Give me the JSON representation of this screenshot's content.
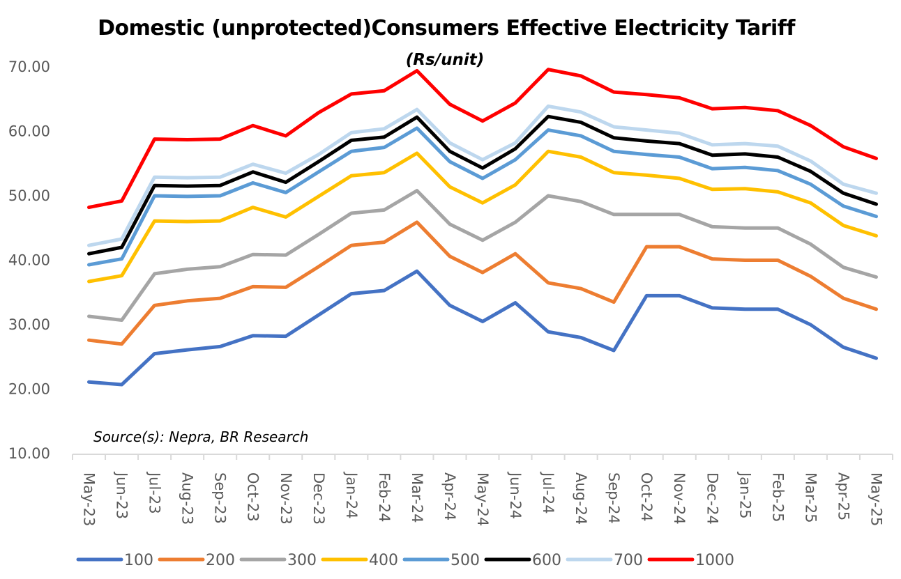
{
  "chart_data": {
    "type": "line",
    "title": "Domestic (unprotected)Consumers Effective Electricity Tariff",
    "subtitle": "(Rs/unit)",
    "xlabel": "",
    "ylabel": "",
    "ylim": [
      10,
      70
    ],
    "yticks": [
      "10.00",
      "20.00",
      "30.00",
      "40.00",
      "50.00",
      "60.00",
      "70.00"
    ],
    "grid": false,
    "legend_position": "bottom",
    "source": "Source(s): Nepra, BR Research",
    "categories": [
      "May-23",
      "Jun-23",
      "Jul-23",
      "Aug-23",
      "Sep-23",
      "Oct-23",
      "Nov-23",
      "Dec-23",
      "Jan-24",
      "Feb-24",
      "Mar-24",
      "Apr-24",
      "May-24",
      "Jun-24",
      "Jul-24",
      "Aug-24",
      "Sep-24",
      "Oct-24",
      "Nov-24",
      "Dec-24",
      "Jan-25",
      "Feb-25",
      "Mar-25",
      "Apr-25",
      "May-25"
    ],
    "series": [
      {
        "name": "100",
        "color": "#4472c4",
        "values": [
          21.1,
          20.7,
          25.5,
          26.1,
          26.6,
          28.3,
          28.2,
          31.5,
          34.8,
          35.3,
          38.3,
          33.0,
          30.5,
          33.4,
          28.9,
          28.0,
          26.0,
          34.5,
          34.5,
          32.6,
          32.4,
          32.4,
          30.0,
          26.5,
          24.8
        ]
      },
      {
        "name": "200",
        "color": "#ed7d31",
        "values": [
          27.6,
          27.0,
          33.0,
          33.7,
          34.1,
          35.9,
          35.8,
          39.0,
          42.3,
          42.8,
          45.9,
          40.6,
          38.1,
          41.0,
          36.5,
          35.6,
          33.5,
          42.1,
          42.1,
          40.2,
          40.0,
          40.0,
          37.5,
          34.1,
          32.4
        ]
      },
      {
        "name": "300",
        "color": "#a5a5a5",
        "values": [
          31.3,
          30.7,
          37.9,
          38.6,
          39.0,
          40.9,
          40.8,
          44.0,
          47.3,
          47.8,
          50.8,
          45.6,
          43.1,
          45.9,
          50.0,
          49.1,
          47.1,
          47.1,
          47.1,
          45.2,
          45.0,
          45.0,
          42.5,
          38.9,
          37.4
        ]
      },
      {
        "name": "400",
        "color": "#ffc000",
        "values": [
          36.7,
          37.6,
          46.1,
          46.0,
          46.1,
          48.2,
          46.7,
          49.9,
          53.1,
          53.6,
          56.6,
          51.4,
          48.9,
          51.7,
          56.9,
          56.0,
          53.6,
          53.2,
          52.7,
          51.0,
          51.1,
          50.6,
          48.9,
          45.4,
          43.8
        ]
      },
      {
        "name": "500",
        "color": "#5b9bd5",
        "values": [
          39.3,
          40.2,
          50.0,
          49.9,
          50.0,
          52.0,
          50.5,
          53.7,
          56.9,
          57.5,
          60.5,
          55.3,
          52.7,
          55.6,
          60.2,
          59.3,
          56.9,
          56.4,
          56.0,
          54.2,
          54.4,
          53.9,
          51.8,
          48.4,
          46.8
        ]
      },
      {
        "name": "600",
        "color": "#000000",
        "values": [
          41.0,
          42.0,
          51.6,
          51.5,
          51.6,
          53.7,
          52.1,
          55.3,
          58.6,
          59.1,
          62.2,
          56.9,
          54.3,
          57.3,
          62.3,
          61.4,
          59.0,
          58.5,
          58.1,
          56.3,
          56.5,
          56.0,
          53.8,
          50.4,
          48.7
        ]
      },
      {
        "name": "700",
        "color": "#bdd7ee",
        "values": [
          42.3,
          43.3,
          52.9,
          52.8,
          52.9,
          54.9,
          53.5,
          56.4,
          59.8,
          60.4,
          63.4,
          58.2,
          55.6,
          58.2,
          63.9,
          63.0,
          60.7,
          60.2,
          59.7,
          57.9,
          58.1,
          57.7,
          55.4,
          51.8,
          50.4
        ]
      },
      {
        "name": "1000",
        "color": "#ff0000",
        "values": [
          48.2,
          49.2,
          58.8,
          58.7,
          58.8,
          60.9,
          59.3,
          62.9,
          65.8,
          66.3,
          69.4,
          64.2,
          61.6,
          64.4,
          69.6,
          68.6,
          66.1,
          65.7,
          65.2,
          63.5,
          63.7,
          63.2,
          60.9,
          57.6,
          55.8
        ]
      }
    ]
  }
}
